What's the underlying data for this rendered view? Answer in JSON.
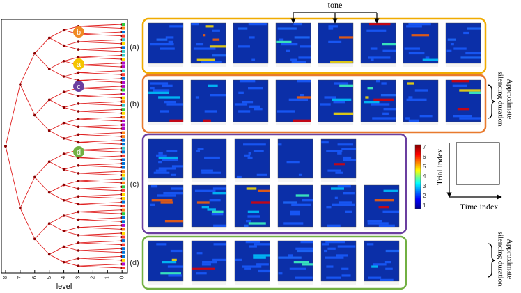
{
  "figure": {
    "tone": "tone",
    "panels": [
      "(a)",
      "(b)",
      "(c)",
      "(d)"
    ],
    "side_labels": [
      [
        "Approximate",
        "silencing duration"
      ],
      [
        "Approximate",
        "silencing duration"
      ]
    ],
    "legend": {
      "y_label": "Trial index",
      "x_label": "Time index"
    },
    "dendrogram": {
      "xlabel": "level",
      "xticks": [
        "8",
        "7",
        "6",
        "5",
        "4",
        "3",
        "2",
        "1",
        "0"
      ],
      "node_labels": [
        "b",
        "a",
        "c",
        "d"
      ]
    },
    "colorbar": {
      "ticks": [
        "7",
        "6",
        "5",
        "4",
        "3",
        "2",
        "1"
      ]
    }
  }
}
